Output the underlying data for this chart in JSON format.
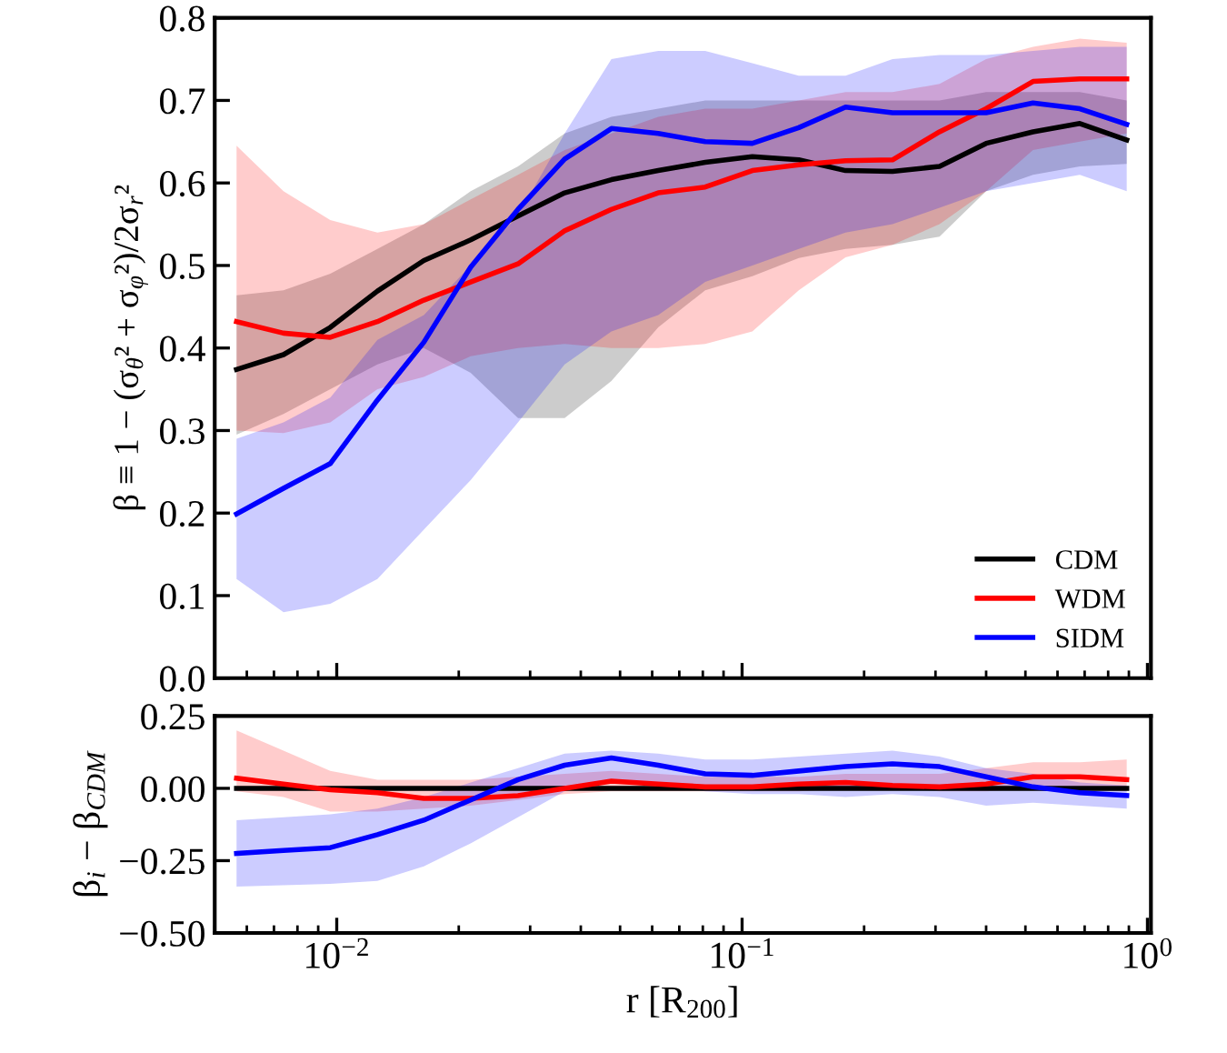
{
  "chart_data": [
    {
      "type": "line",
      "ylabel": "β ≡ 1 − (σ$_{θ}$² + σ$_{φ}$²)/2σ$_{r}$²",
      "log": "x",
      "xlim": [
        0.005,
        1.02
      ],
      "xticks": [
        {
          "value": 0.01,
          "label": null
        },
        {
          "value": 0.1,
          "label": null
        },
        {
          "value": 1,
          "label": null
        }
      ],
      "ylim": [
        0.0,
        0.8
      ],
      "yticks": [
        {
          "value": 0,
          "label": "0.0"
        },
        0.1,
        0.2,
        0.3,
        0.4,
        0.5,
        0.6,
        0.7,
        0.8
      ],
      "tick_labels": "y",
      "legend": "lower right",
      "grid": false,
      "x": [
        0.00566,
        0.00739,
        0.00964,
        0.0126,
        0.0164,
        0.0214,
        0.028,
        0.0365,
        0.0476,
        0.0621,
        0.0811,
        0.106,
        0.138,
        0.18,
        0.235,
        0.307,
        0.4,
        0.522,
        0.681,
        0.889
      ],
      "series": [
        {
          "name": "CDM",
          "color": "#000000",
          "values": [
            0.374,
            0.392,
            0.425,
            0.469,
            0.506,
            0.531,
            0.56,
            0.588,
            0.604,
            0.615,
            0.625,
            0.632,
            0.628,
            0.615,
            0.614,
            0.62,
            0.648,
            0.662,
            0.672,
            0.652
          ],
          "lower": [
            0.295,
            0.32,
            0.35,
            0.38,
            0.4,
            0.37,
            0.315,
            0.315,
            0.36,
            0.425,
            0.47,
            0.487,
            0.509,
            0.52,
            0.525,
            0.535,
            0.59,
            0.61,
            0.62,
            0.623
          ],
          "upper": [
            0.464,
            0.47,
            0.49,
            0.52,
            0.55,
            0.59,
            0.62,
            0.66,
            0.68,
            0.69,
            0.7,
            0.7,
            0.7,
            0.7,
            0.7,
            0.7,
            0.71,
            0.71,
            0.71,
            0.7
          ]
        },
        {
          "name": "WDM",
          "color": "#ff0000",
          "values": [
            0.432,
            0.418,
            0.413,
            0.432,
            0.458,
            0.48,
            0.502,
            0.542,
            0.568,
            0.588,
            0.595,
            0.615,
            0.622,
            0.627,
            0.628,
            0.662,
            0.69,
            0.723,
            0.726,
            0.726
          ],
          "lower": [
            0.3,
            0.297,
            0.31,
            0.35,
            0.365,
            0.39,
            0.4,
            0.405,
            0.4,
            0.4,
            0.405,
            0.42,
            0.47,
            0.51,
            0.525,
            0.55,
            0.59,
            0.64,
            0.65,
            0.66
          ],
          "upper": [
            0.645,
            0.59,
            0.555,
            0.54,
            0.55,
            0.58,
            0.61,
            0.64,
            0.66,
            0.68,
            0.69,
            0.69,
            0.7,
            0.71,
            0.71,
            0.72,
            0.75,
            0.765,
            0.775,
            0.77
          ]
        },
        {
          "name": "SIDM",
          "color": "#0000ff",
          "values": [
            0.199,
            0.23,
            0.26,
            0.337,
            0.407,
            0.498,
            0.568,
            0.629,
            0.666,
            0.66,
            0.65,
            0.648,
            0.667,
            0.692,
            0.685,
            0.685,
            0.685,
            0.697,
            0.69,
            0.671
          ],
          "lower": [
            0.12,
            0.08,
            0.09,
            0.12,
            0.18,
            0.24,
            0.31,
            0.38,
            0.42,
            0.44,
            0.48,
            0.5,
            0.52,
            0.54,
            0.55,
            0.57,
            0.59,
            0.6,
            0.61,
            0.59
          ],
          "upper": [
            0.29,
            0.31,
            0.34,
            0.41,
            0.44,
            0.5,
            0.56,
            0.66,
            0.75,
            0.76,
            0.76,
            0.745,
            0.73,
            0.73,
            0.75,
            0.755,
            0.755,
            0.76,
            0.765,
            0.765
          ]
        }
      ]
    },
    {
      "type": "line",
      "xlabel": "r [R$_{200}$]",
      "ylabel": "β$_{i}$ − β$_{CDM}$",
      "log": "x",
      "xlim": [
        0.005,
        1.02
      ],
      "xticks": [
        {
          "value": 0.01,
          "label": "10$^{−2}$"
        },
        {
          "value": 0.1,
          "label": "10$^{−1}$"
        },
        {
          "value": 1,
          "label": "10$^{0}$"
        }
      ],
      "ylim": [
        -0.5,
        0.25
      ],
      "yticks": [
        {
          "value": -0.5,
          "label": "−0.50"
        },
        {
          "value": -0.25,
          "label": "−0.25"
        },
        {
          "value": 0,
          "label": "0.00"
        },
        {
          "value": 0.25,
          "label": "0.25"
        }
      ],
      "grid": false,
      "x": [
        0.00566,
        0.00739,
        0.00964,
        0.0126,
        0.0164,
        0.0214,
        0.028,
        0.0365,
        0.0476,
        0.0621,
        0.0811,
        0.106,
        0.138,
        0.18,
        0.235,
        0.307,
        0.4,
        0.522,
        0.681,
        0.889
      ],
      "series": [
        {
          "color": "#000000",
          "values": [
            0,
            0,
            0,
            0,
            0,
            0,
            0,
            0,
            0,
            0,
            0,
            0,
            0,
            0,
            0,
            0,
            0,
            0,
            0,
            0
          ]
        },
        {
          "color": "#ff0000",
          "values": [
            0.035,
            0.015,
            -0.005,
            -0.015,
            -0.035,
            -0.035,
            -0.025,
            0.0,
            0.025,
            0.015,
            0.005,
            0.005,
            0.015,
            0.02,
            0.01,
            0.005,
            0.015,
            0.04,
            0.04,
            0.03
          ],
          "lower": [
            -0.01,
            -0.03,
            -0.08,
            -0.08,
            -0.07,
            -0.06,
            -0.04,
            -0.02,
            -0.01,
            -0.01,
            -0.01,
            -0.01,
            -0.01,
            0.0,
            0.0,
            -0.01,
            -0.01,
            0.0,
            -0.005,
            -0.01
          ],
          "upper": [
            0.2,
            0.13,
            0.06,
            0.03,
            0.03,
            0.03,
            0.04,
            0.05,
            0.06,
            0.05,
            0.04,
            0.04,
            0.04,
            0.05,
            0.05,
            0.05,
            0.07,
            0.09,
            0.09,
            0.1
          ]
        },
        {
          "color": "#0000ff",
          "values": [
            -0.225,
            -0.215,
            -0.205,
            -0.16,
            -0.11,
            -0.04,
            0.03,
            0.08,
            0.105,
            0.08,
            0.05,
            0.045,
            0.06,
            0.075,
            0.085,
            0.075,
            0.04,
            0.005,
            -0.015,
            -0.025
          ],
          "lower": [
            -0.34,
            -0.335,
            -0.33,
            -0.32,
            -0.27,
            -0.19,
            -0.1,
            -0.01,
            0.03,
            0.02,
            -0.01,
            -0.02,
            -0.02,
            -0.03,
            -0.02,
            -0.03,
            -0.06,
            -0.05,
            -0.06,
            -0.07
          ],
          "upper": [
            -0.11,
            -0.1,
            -0.09,
            -0.07,
            -0.03,
            0.02,
            0.07,
            0.12,
            0.13,
            0.12,
            0.1,
            0.1,
            0.11,
            0.12,
            0.13,
            0.11,
            0.07,
            0.05,
            0.02,
            0.01
          ]
        }
      ]
    }
  ]
}
